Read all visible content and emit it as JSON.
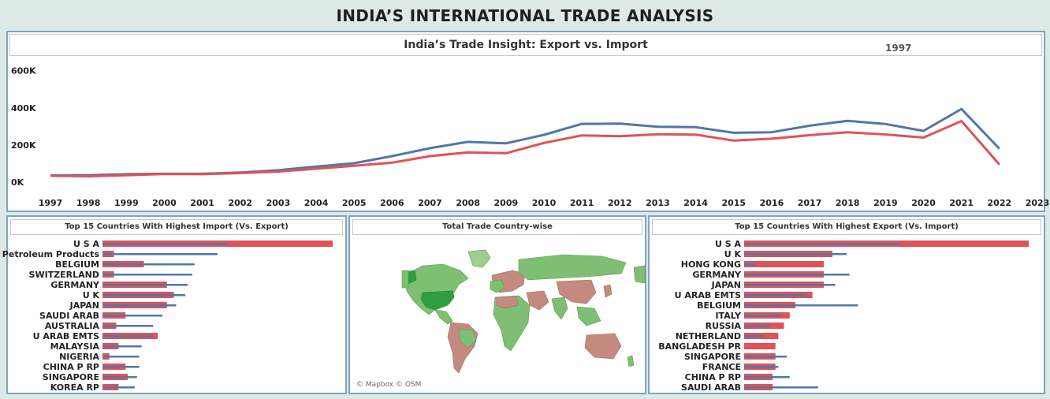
{
  "dashboard": {
    "title": "INDIA’S INTERNATIONAL TRADE ANALYSIS"
  },
  "colors": {
    "export": "#5177a8",
    "import": "#e05257",
    "map_export_dominant": "#7fbf73",
    "map_import_dominant": "#c48a80",
    "map_highlight": "#2f9e3f"
  },
  "line_panel": {
    "title": "India’s Trade Insight: Export vs. Import",
    "year_filter_label": "1997"
  },
  "import_panel": {
    "title": "Top 15 Countries With Highest Import (Vs. Export)"
  },
  "map_panel": {
    "title": "Total Trade Country-wise",
    "credit": "© Mapbox © OSM"
  },
  "export_panel": {
    "title": "Top 15 Countries With Highest Export (Vs. Import)"
  },
  "chart_data": [
    {
      "type": "line",
      "title": "India’s Trade Insight: Export vs. Import",
      "x": [
        1997,
        1998,
        1999,
        2000,
        2001,
        2002,
        2003,
        2004,
        2005,
        2006,
        2007,
        2008,
        2009,
        2010,
        2011,
        2012,
        2013,
        2014,
        2015,
        2016,
        2017,
        2018,
        2019,
        2020,
        2021,
        2022
      ],
      "x_tick_labels": [
        "1997",
        "1998",
        "1999",
        "2000",
        "2001",
        "2002",
        "2003",
        "2004",
        "2005",
        "2006",
        "2007",
        "2008",
        "2009",
        "2010",
        "2011",
        "2012",
        "2013",
        "2014",
        "2015",
        "2016",
        "2017",
        "2018",
        "2019",
        "2020",
        "2021",
        "2022",
        "2023"
      ],
      "y_tick_labels": [
        "0K",
        "200K",
        "400K",
        "600K"
      ],
      "ylim": [
        0,
        620000
      ],
      "grid": false,
      "series": [
        {
          "color": "#5177a8",
          "values": [
            36000,
            38000,
            43000,
            45000,
            45000,
            52000,
            64000,
            84000,
            102000,
            140000,
            183000,
            217000,
            209000,
            255000,
            314000,
            315000,
            298000,
            296000,
            266000,
            269000,
            304000,
            330000,
            313000,
            276000,
            394000,
            180000
          ]
        },
        {
          "color": "#e05257",
          "values": [
            34000,
            32000,
            37000,
            44000,
            43000,
            49000,
            57000,
            72000,
            88000,
            105000,
            140000,
            160000,
            156000,
            211000,
            252000,
            247000,
            258000,
            256000,
            224000,
            234000,
            253000,
            269000,
            257000,
            240000,
            329000,
            95000
          ]
        }
      ]
    },
    {
      "type": "bar",
      "title": "Top 15 Countries With Highest Import (Vs. Export)",
      "categories": [
        "U S A",
        "Petroleum Products",
        "BELGIUM",
        "SWITZERLAND",
        "GERMANY",
        "U K",
        "JAPAN",
        "SAUDI ARAB",
        "AUSTRALIA",
        "U ARAB EMTS",
        "MALAYSIA",
        "NIGERIA",
        "CHINA P RP",
        "SINGAPORE",
        "KOREA RP"
      ],
      "xlim": [
        0,
        100
      ],
      "series": [
        {
          "color": "#e05257",
          "values": [
            100,
            5,
            18,
            5,
            28,
            31,
            28,
            10,
            6,
            24,
            7,
            3,
            10,
            11,
            7
          ]
        },
        {
          "color": "#5177a8",
          "values": [
            55,
            50,
            40,
            39,
            37,
            36,
            32,
            26,
            22,
            22,
            17,
            16,
            16,
            15,
            14
          ]
        }
      ]
    },
    {
      "type": "bar",
      "title": "Top 15 Countries With Highest Export (Vs. Import)",
      "categories": [
        "U S A",
        "U K",
        "HONG KONG",
        "GERMANY",
        "JAPAN",
        "U ARAB EMTS",
        "BELGIUM",
        "ITALY",
        "RUSSIA",
        "NETHERLAND",
        "BANGLADESH PR",
        "SINGAPORE",
        "FRANCE",
        "CHINA P RP",
        "SAUDI ARAB"
      ],
      "xlim": [
        0,
        100
      ],
      "series": [
        {
          "color": "#e05257",
          "values": [
            100,
            31,
            28,
            28,
            28,
            24,
            18,
            16,
            14,
            12,
            11,
            11,
            11,
            10,
            10
          ]
        },
        {
          "color": "#5177a8",
          "values": [
            55,
            36,
            4,
            37,
            32,
            22,
            40,
            13,
            9,
            7,
            0,
            15,
            12,
            16,
            26
          ]
        }
      ]
    }
  ]
}
